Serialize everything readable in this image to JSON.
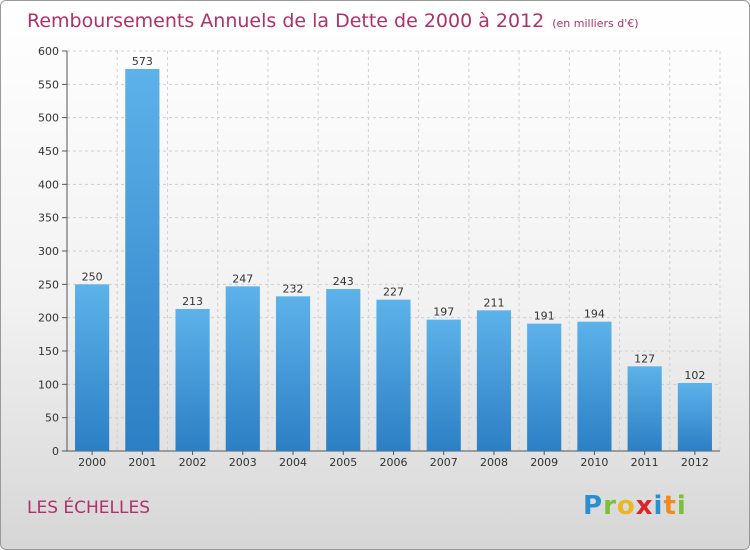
{
  "header": {
    "title": "Remboursements Annuels de la Dette de 2000 à 2012",
    "unit": "(en milliers d'€)"
  },
  "footer": {
    "commune": "LES ÉCHELLES"
  },
  "logo": {
    "text": "Proxiti",
    "colors": [
      "#2a8fd0",
      "#7bbf3a",
      "#e8b81e",
      "#d9262b",
      "#2a8fd0",
      "#f08c1f",
      "#7bbf3a"
    ]
  },
  "chart_data": {
    "type": "bar",
    "categories": [
      "2000",
      "2001",
      "2002",
      "2003",
      "2004",
      "2005",
      "2006",
      "2007",
      "2008",
      "2009",
      "2010",
      "2011",
      "2012"
    ],
    "values": [
      250,
      573,
      213,
      247,
      232,
      243,
      227,
      197,
      211,
      191,
      194,
      127,
      102
    ],
    "title": "Remboursements Annuels de la Dette de 2000 à 2012",
    "ylim": [
      0,
      600
    ],
    "yticks": [
      0,
      50,
      100,
      150,
      200,
      250,
      300,
      350,
      400,
      450,
      500,
      550,
      600
    ],
    "grid": true,
    "bar_color": "#3d9ee0"
  }
}
